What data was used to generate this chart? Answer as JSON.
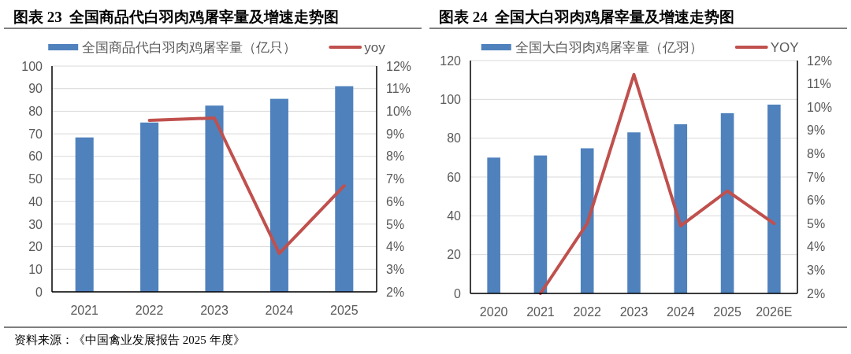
{
  "chart_data": [
    {
      "type": "bar",
      "title": "图表 23  全国商品代白羽肉鸡屠宰量及增速走势图",
      "categories": [
        "2021",
        "2022",
        "2023",
        "2024",
        "2025"
      ],
      "series": [
        {
          "name": "全国商品代白羽肉鸡屠宰量（亿只）",
          "color": "#4f81bd",
          "values": [
            68.4,
            75.0,
            82.5,
            85.5,
            91.1
          ]
        },
        {
          "name": "yoy",
          "type": "line",
          "axis": "y2",
          "color": "#c0504d",
          "values": [
            null,
            9.6,
            9.7,
            3.7,
            6.7
          ]
        }
      ],
      "ylim": [
        0,
        100
      ],
      "yticks": [
        0,
        10,
        20,
        30,
        40,
        50,
        60,
        70,
        80,
        90,
        100
      ],
      "y2lim": [
        2,
        12
      ],
      "y2ticks": [
        {
          "value": 2,
          "label": "2%"
        },
        {
          "value": 3,
          "label": "3%"
        },
        {
          "value": 4,
          "label": "4%"
        },
        {
          "value": 5,
          "label": "5%"
        },
        {
          "value": 6,
          "label": "6%"
        },
        {
          "value": 7,
          "label": "7%"
        },
        {
          "value": 8,
          "label": "8%"
        },
        {
          "value": 9,
          "label": "9%"
        },
        {
          "value": 10,
          "label": "10%"
        },
        {
          "value": 11,
          "label": "11%"
        },
        {
          "value": 12,
          "label": "12%"
        }
      ],
      "grid": "y",
      "legend": "top",
      "annotations": [
        "资料来源：《中国禽业发展报告 2025 年度》"
      ]
    },
    {
      "type": "bar",
      "title": "图表 24  全国大白羽肉鸡屠宰量及增速走势图",
      "categories": [
        "2020",
        "2021",
        "2022",
        "2023",
        "2024",
        "2025",
        "2026E"
      ],
      "series": [
        {
          "name": "全国大白羽肉鸡屠宰量（亿羽）",
          "color": "#4f81bd",
          "values": [
            70.0,
            71.1,
            74.8,
            83.0,
            87.2,
            92.9,
            97.3
          ]
        },
        {
          "name": "YOY",
          "type": "line",
          "axis": "y2",
          "color": "#c0504d",
          "values": [
            null,
            2.0,
            5.0,
            11.4,
            4.9,
            6.4,
            5.0
          ]
        }
      ],
      "ylim": [
        0,
        120
      ],
      "yticks": [
        0,
        20,
        40,
        60,
        80,
        100,
        120
      ],
      "y2lim": [
        2,
        12
      ],
      "y2ticks": [
        {
          "value": 2,
          "label": "2%"
        },
        {
          "value": 3,
          "label": "3%"
        },
        {
          "value": 4,
          "label": "4%"
        },
        {
          "value": 5,
          "label": "5%"
        },
        {
          "value": 6,
          "label": "6%"
        },
        {
          "value": 7,
          "label": "7%"
        },
        {
          "value": 8,
          "label": "8%"
        },
        {
          "value": 9,
          "label": "9%"
        },
        {
          "value": 10,
          "label": "10%"
        },
        {
          "value": 11,
          "label": "11%"
        },
        {
          "value": 12,
          "label": "12%"
        }
      ],
      "grid": "y",
      "legend": "top"
    }
  ]
}
